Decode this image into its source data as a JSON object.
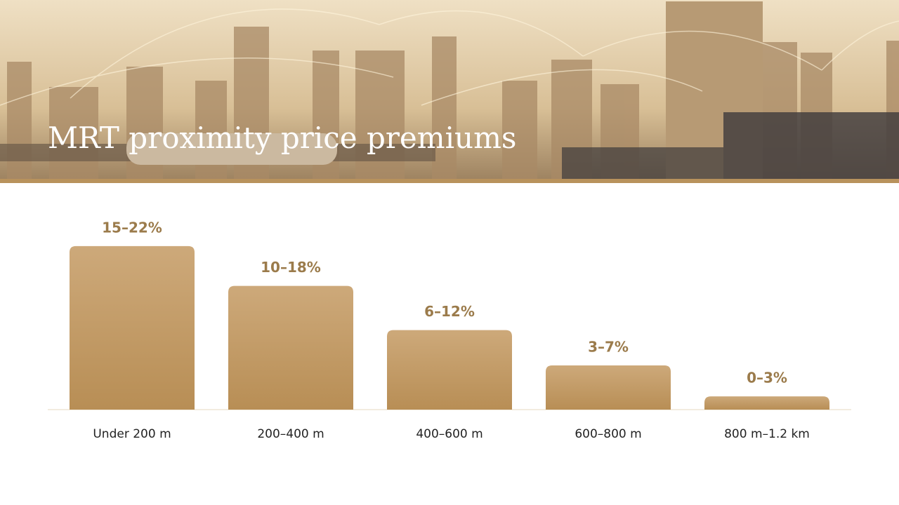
{
  "chart_data": {
    "type": "bar",
    "title": "MRT proximity price premiums",
    "categories": [
      "Under 200 m",
      "200–400 m",
      "400–600 m",
      "600–800 m",
      "800 m–1.2 km"
    ],
    "values": [
      [
        15,
        22
      ],
      [
        10,
        18
      ],
      [
        6,
        12
      ],
      [
        3,
        7
      ],
      [
        0,
        3
      ]
    ],
    "value_labels": [
      "15–22%",
      "10–18%",
      "6–12%",
      "3–7%",
      "0–3%"
    ],
    "color": "#c09a64"
  }
}
